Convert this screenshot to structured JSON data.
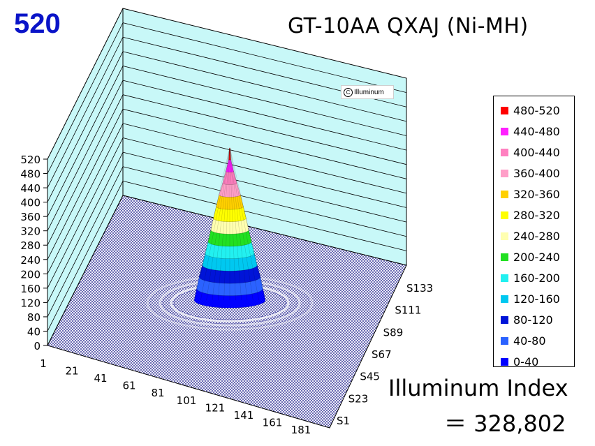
{
  "peak_label": "520",
  "title": "GT-10AA QXAJ (Ni-MH)",
  "watermark": "Illuminum",
  "index_label": "Illuminum Index",
  "index_value": "＝ 328,802",
  "colors": {
    "band_0_40": "#0000ff",
    "band_40_80": "#2b62ff",
    "band_80_120": "#0014d8",
    "band_120_160": "#00c8f0",
    "band_160_200": "#22f0f0",
    "band_200_240": "#22e022",
    "band_240_280": "#ffffb0",
    "band_280_320": "#ffff00",
    "band_320_360": "#ffd000",
    "band_360_400": "#ff9fc8",
    "band_400_440": "#ff80c0",
    "band_440_480": "#ff20ff",
    "band_480_520": "#ff0000",
    "walls": "#c8f8f8",
    "floor": "#1a1a8c",
    "peak_label": "#0a14c8"
  },
  "chart_data": {
    "type": "3d-surface",
    "title": "GT-10AA QXAJ (Ni-MH)",
    "z_ticks": [
      "520",
      "480",
      "440",
      "400",
      "360",
      "320",
      "280",
      "240",
      "200",
      "160",
      "120",
      "80",
      "40",
      "0"
    ],
    "z_range": [
      0,
      520
    ],
    "x_ticks": [
      "1",
      "21",
      "41",
      "61",
      "81",
      "101",
      "121",
      "141",
      "161",
      "181"
    ],
    "y_ticks": [
      "S1",
      "S23",
      "S45",
      "S67",
      "S89",
      "S111",
      "S133"
    ],
    "peak_value": 520,
    "peak_position": {
      "x": 91,
      "y": "S67"
    },
    "legend_position": "right",
    "legend": [
      {
        "label": "480-520",
        "color": "#ff0000"
      },
      {
        "label": "440-480",
        "color": "#ff20ff"
      },
      {
        "label": "400-440",
        "color": "#ff80c0"
      },
      {
        "label": "360-400",
        "color": "#ff9fc8"
      },
      {
        "label": "320-360",
        "color": "#ffd000"
      },
      {
        "label": "280-320",
        "color": "#ffff00"
      },
      {
        "label": "240-280",
        "color": "#ffffb0"
      },
      {
        "label": "200-240",
        "color": "#22e022"
      },
      {
        "label": "160-200",
        "color": "#22f0f0"
      },
      {
        "label": "120-160",
        "color": "#00c8f0"
      },
      {
        "label": "80-120",
        "color": "#0014d8"
      },
      {
        "label": "40-80",
        "color": "#2b62ff"
      },
      {
        "label": "0-40",
        "color": "#0000ff"
      }
    ],
    "bands": [
      {
        "range": "0-40",
        "rel_width": 1.0,
        "color": "#0000ff"
      },
      {
        "range": "40-80",
        "rel_width": 0.93,
        "color": "#2b62ff"
      },
      {
        "range": "80-120",
        "rel_width": 0.86,
        "color": "#0014d8"
      },
      {
        "range": "120-160",
        "rel_width": 0.77,
        "color": "#00c8f0"
      },
      {
        "range": "160-200",
        "rel_width": 0.69,
        "color": "#22f0f0"
      },
      {
        "range": "200-240",
        "rel_width": 0.61,
        "color": "#22e022"
      },
      {
        "range": "240-280",
        "rel_width": 0.53,
        "color": "#ffffb0"
      },
      {
        "range": "280-320",
        "rel_width": 0.46,
        "color": "#ffff00"
      },
      {
        "range": "320-360",
        "rel_width": 0.38,
        "color": "#ffd000"
      },
      {
        "range": "360-400",
        "rel_width": 0.3,
        "color": "#ff9fc8"
      },
      {
        "range": "400-440",
        "rel_width": 0.2,
        "color": "#ff80c0"
      },
      {
        "range": "440-480",
        "rel_width": 0.11,
        "color": "#ff20ff"
      },
      {
        "range": "480-520",
        "rel_width": 0.03,
        "color": "#ff0000"
      }
    ]
  }
}
